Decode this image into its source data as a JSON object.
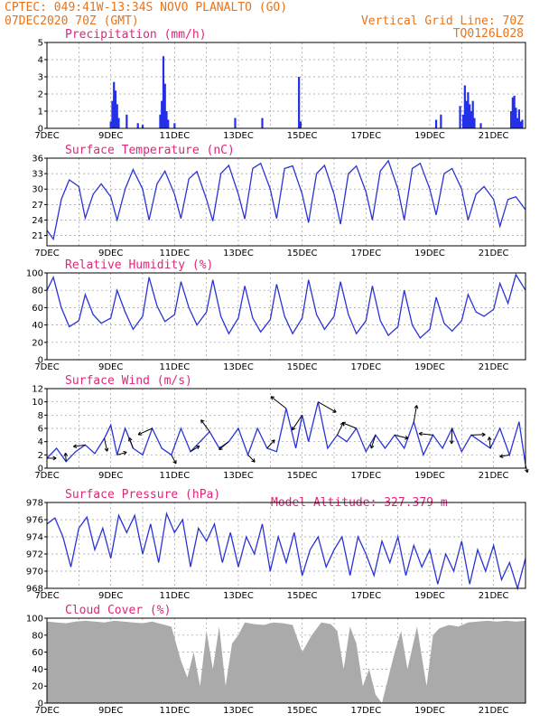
{
  "header": {
    "line1_left": "CPTEC:  049:41W-13:34S  NOVO PLANALTO (GO)",
    "line2_left": "07DEC2020 70Z (GMT)",
    "line2_right": "Vertical Grid Line: 70Z",
    "line3_right": "TQ0126L028",
    "model_altitude": "Model Altitude: 327.379 m"
  },
  "colors": {
    "header": "#e8731b",
    "title": "#e0257a",
    "series": "#2a33d6",
    "bars": "#2430e8",
    "cloud": "#aaaaaa"
  },
  "chart_data": [
    {
      "type": "bar",
      "title": "Precipitation (mm/h)",
      "xlim": [
        0,
        15
      ],
      "ylim": [
        0,
        5
      ],
      "yticks": [
        0,
        1,
        2,
        3,
        4,
        5
      ],
      "xticks": [
        {
          "x": 0,
          "label": "7DEC"
        },
        {
          "x": 2,
          "label": "9DEC"
        },
        {
          "x": 4,
          "label": "11DEC"
        },
        {
          "x": 6,
          "label": "13DEC"
        },
        {
          "x": 8,
          "label": "15DEC"
        },
        {
          "x": 10,
          "label": "17DEC"
        },
        {
          "x": 12,
          "label": "19DEC"
        },
        {
          "x": 14,
          "label": "21DEC"
        }
      ],
      "x": [
        2.0,
        2.05,
        2.1,
        2.15,
        2.2,
        2.25,
        2.5,
        2.85,
        3.0,
        3.55,
        3.6,
        3.65,
        3.7,
        3.75,
        3.8,
        4.0,
        5.9,
        6.75,
        7.9,
        7.95,
        12.2,
        12.35,
        12.95,
        13.05,
        13.1,
        13.15,
        13.2,
        13.25,
        13.3,
        13.35,
        13.4,
        13.6,
        14.55,
        14.6,
        14.65,
        14.7,
        14.75,
        14.8,
        14.85,
        14.9
      ],
      "values": [
        0.4,
        1.6,
        2.7,
        2.2,
        1.4,
        0.6,
        0.8,
        0.3,
        0.2,
        0.8,
        1.6,
        4.2,
        2.6,
        1.0,
        0.5,
        0.3,
        0.6,
        0.6,
        3.0,
        0.4,
        0.5,
        0.8,
        1.3,
        0.8,
        2.5,
        1.6,
        2.1,
        1.4,
        1.0,
        1.6,
        0.6,
        0.3,
        1.0,
        1.8,
        1.9,
        1.2,
        0.6,
        1.1,
        0.4,
        0.5
      ]
    },
    {
      "type": "line",
      "title": "Surface Temperature (nC)",
      "xlim": [
        0,
        15
      ],
      "ylim": [
        19,
        36
      ],
      "yticks": [
        21,
        24,
        27,
        30,
        33,
        36
      ],
      "xticks": [
        {
          "x": 0,
          "label": "7DEC"
        },
        {
          "x": 2,
          "label": "9DEC"
        },
        {
          "x": 4,
          "label": "11DEC"
        },
        {
          "x": 6,
          "label": "13DEC"
        },
        {
          "x": 8,
          "label": "15DEC"
        },
        {
          "x": 10,
          "label": "17DEC"
        },
        {
          "x": 12,
          "label": "19DEC"
        },
        {
          "x": 14,
          "label": "21DEC"
        }
      ],
      "x": [
        0,
        0.2,
        0.45,
        0.7,
        1.0,
        1.2,
        1.45,
        1.7,
        2.0,
        2.2,
        2.45,
        2.7,
        3.0,
        3.2,
        3.45,
        3.7,
        4.0,
        4.2,
        4.45,
        4.7,
        5.0,
        5.2,
        5.45,
        5.7,
        6.0,
        6.2,
        6.45,
        6.7,
        7.0,
        7.2,
        7.45,
        7.7,
        8.0,
        8.2,
        8.45,
        8.7,
        9.0,
        9.2,
        9.45,
        9.7,
        10.0,
        10.2,
        10.45,
        10.7,
        11.0,
        11.2,
        11.45,
        11.7,
        12.0,
        12.2,
        12.45,
        12.7,
        13.0,
        13.2,
        13.45,
        13.7,
        14.0,
        14.2,
        14.45,
        14.7,
        15.0
      ],
      "values": [
        22,
        20.3,
        28,
        31.8,
        30.5,
        24.4,
        29,
        31,
        28.5,
        24,
        30,
        33.8,
        30,
        24,
        31,
        33.5,
        29,
        24.3,
        32,
        33.4,
        28,
        23.8,
        33,
        34.6,
        29,
        24.2,
        34,
        35.0,
        30,
        24.3,
        34,
        34.5,
        29,
        23.5,
        33,
        34.6,
        29,
        23.2,
        33,
        34.5,
        29.5,
        24,
        33.5,
        35.5,
        30,
        24,
        34,
        35.0,
        30,
        25,
        33,
        34.0,
        30,
        24,
        29,
        30.5,
        28,
        22.8,
        28,
        28.5,
        26
      ]
    },
    {
      "type": "line",
      "title": "Relative Humidity (%)",
      "xlim": [
        0,
        15
      ],
      "ylim": [
        0,
        100
      ],
      "yticks": [
        0,
        20,
        40,
        60,
        80,
        100
      ],
      "xticks": [
        {
          "x": 0,
          "label": "7DEC"
        },
        {
          "x": 2,
          "label": "9DEC"
        },
        {
          "x": 4,
          "label": "11DEC"
        },
        {
          "x": 6,
          "label": "13DEC"
        },
        {
          "x": 8,
          "label": "15DEC"
        },
        {
          "x": 10,
          "label": "17DEC"
        },
        {
          "x": 12,
          "label": "19DEC"
        },
        {
          "x": 14,
          "label": "21DEC"
        }
      ],
      "x": [
        0,
        0.2,
        0.45,
        0.7,
        1.0,
        1.2,
        1.45,
        1.7,
        2.0,
        2.2,
        2.45,
        2.7,
        3.0,
        3.2,
        3.45,
        3.7,
        4.0,
        4.2,
        4.45,
        4.7,
        5.0,
        5.2,
        5.45,
        5.7,
        6.0,
        6.2,
        6.45,
        6.7,
        7.0,
        7.2,
        7.45,
        7.7,
        8.0,
        8.2,
        8.45,
        8.7,
        9.0,
        9.2,
        9.45,
        9.7,
        10.0,
        10.2,
        10.45,
        10.7,
        11.0,
        11.2,
        11.45,
        11.7,
        12.0,
        12.2,
        12.45,
        12.7,
        13.0,
        13.2,
        13.45,
        13.7,
        14.0,
        14.2,
        14.45,
        14.7,
        15.0
      ],
      "values": [
        80,
        95,
        60,
        38,
        45,
        75,
        52,
        42,
        48,
        80,
        55,
        35,
        50,
        95,
        62,
        44,
        52,
        90,
        60,
        40,
        55,
        92,
        50,
        30,
        48,
        85,
        48,
        32,
        46,
        87,
        50,
        30,
        48,
        92,
        52,
        35,
        50,
        90,
        52,
        30,
        45,
        85,
        45,
        28,
        38,
        80,
        40,
        25,
        35,
        72,
        42,
        33,
        45,
        75,
        55,
        50,
        58,
        88,
        65,
        98,
        80
      ]
    },
    {
      "type": "line",
      "title": "Surface Wind (m/s)",
      "xlim": [
        0,
        15
      ],
      "ylim": [
        0,
        12
      ],
      "yticks": [
        0,
        2,
        4,
        6,
        8,
        10,
        12
      ],
      "xticks": [
        {
          "x": 0,
          "label": "7DEC"
        },
        {
          "x": 2,
          "label": "9DEC"
        },
        {
          "x": 4,
          "label": "11DEC"
        },
        {
          "x": 6,
          "label": "13DEC"
        },
        {
          "x": 8,
          "label": "15DEC"
        },
        {
          "x": 10,
          "label": "17DEC"
        },
        {
          "x": 12,
          "label": "19DEC"
        },
        {
          "x": 14,
          "label": "21DEC"
        }
      ],
      "x": [
        0,
        0.3,
        0.6,
        0.9,
        1.2,
        1.5,
        1.8,
        2.0,
        2.2,
        2.45,
        2.7,
        3.0,
        3.3,
        3.6,
        3.9,
        4.2,
        4.5,
        4.8,
        5.1,
        5.4,
        5.7,
        6.0,
        6.3,
        6.6,
        6.9,
        7.2,
        7.5,
        7.8,
        8.0,
        8.2,
        8.5,
        8.8,
        9.1,
        9.4,
        9.7,
        10.0,
        10.3,
        10.6,
        10.9,
        11.2,
        11.5,
        11.8,
        12.1,
        12.4,
        12.7,
        13.0,
        13.3,
        13.6,
        13.9,
        14.2,
        14.5,
        14.8,
        15.0
      ],
      "values": [
        1.5,
        3.0,
        1.0,
        2.5,
        3.5,
        2.2,
        4.5,
        6.5,
        2.0,
        6.0,
        3.0,
        2.0,
        6.0,
        3.0,
        2.0,
        6.0,
        2.5,
        4.0,
        5.5,
        3.0,
        4.0,
        6.0,
        2.0,
        6.0,
        3.0,
        2.5,
        9.0,
        3.0,
        8.0,
        4.0,
        10.0,
        3.0,
        5.0,
        4.0,
        6.0,
        2.5,
        5.0,
        3.0,
        5.0,
        3.0,
        7.0,
        2.0,
        5.0,
        3.0,
        6.0,
        2.5,
        5.0,
        4.0,
        3.0,
        6.0,
        2.0,
        7.0,
        0.5
      ]
    },
    {
      "type": "line",
      "title": "Surface Pressure (hPa)",
      "xlim": [
        0,
        15
      ],
      "ylim": [
        968,
        978
      ],
      "yticks": [
        968,
        970,
        972,
        974,
        976,
        978
      ],
      "xticks": [
        {
          "x": 0,
          "label": "7DEC"
        },
        {
          "x": 2,
          "label": "9DEC"
        },
        {
          "x": 4,
          "label": "11DEC"
        },
        {
          "x": 6,
          "label": "13DEC"
        },
        {
          "x": 8,
          "label": "15DEC"
        },
        {
          "x": 10,
          "label": "17DEC"
        },
        {
          "x": 12,
          "label": "19DEC"
        },
        {
          "x": 14,
          "label": "21DEC"
        }
      ],
      "x": [
        0,
        0.25,
        0.5,
        0.75,
        1.0,
        1.25,
        1.5,
        1.75,
        2.0,
        2.25,
        2.5,
        2.75,
        3.0,
        3.25,
        3.5,
        3.75,
        4.0,
        4.25,
        4.5,
        4.75,
        5.0,
        5.25,
        5.5,
        5.75,
        6.0,
        6.25,
        6.5,
        6.75,
        7.0,
        7.25,
        7.5,
        7.75,
        8.0,
        8.25,
        8.5,
        8.75,
        9.0,
        9.25,
        9.5,
        9.75,
        10.0,
        10.25,
        10.5,
        10.75,
        11.0,
        11.25,
        11.5,
        11.75,
        12.0,
        12.25,
        12.5,
        12.75,
        13.0,
        13.25,
        13.5,
        13.75,
        14.0,
        14.25,
        14.5,
        14.75,
        15.0
      ],
      "values": [
        975.5,
        976.2,
        974,
        970.5,
        975,
        976.3,
        972.5,
        975,
        971.5,
        976.5,
        974.5,
        976.5,
        972,
        975.5,
        971,
        976.7,
        974.5,
        976,
        970.5,
        975,
        973.5,
        975.5,
        971,
        974.5,
        970.5,
        974,
        972,
        975.5,
        970,
        974,
        971,
        974.5,
        969.5,
        972.5,
        974,
        970.5,
        972.5,
        974,
        969.5,
        974,
        972,
        969.5,
        973.5,
        971,
        974,
        969.5,
        973,
        970.5,
        972.5,
        968.5,
        972,
        970,
        973.5,
        968.5,
        972.5,
        970,
        973,
        969,
        971,
        968,
        971.5
      ]
    },
    {
      "type": "area",
      "title": "Cloud Cover (%)",
      "xlim": [
        0,
        15
      ],
      "ylim": [
        0,
        100
      ],
      "yticks": [
        0,
        20,
        40,
        60,
        80,
        100
      ],
      "xticks": [
        {
          "x": 0,
          "label": "7DEC"
        },
        {
          "x": 2,
          "label": "9DEC"
        },
        {
          "x": 4,
          "label": "11DEC"
        },
        {
          "x": 6,
          "label": "13DEC"
        },
        {
          "x": 8,
          "label": "15DEC"
        },
        {
          "x": 10,
          "label": "17DEC"
        },
        {
          "x": 12,
          "label": "19DEC"
        },
        {
          "x": 14,
          "label": "21DEC"
        }
      ],
      "x": [
        0,
        0.3,
        0.6,
        0.9,
        1.2,
        1.5,
        1.8,
        2.1,
        2.4,
        2.7,
        3.0,
        3.3,
        3.6,
        3.9,
        4.2,
        4.4,
        4.6,
        4.8,
        5.0,
        5.2,
        5.4,
        5.6,
        5.8,
        6.0,
        6.2,
        6.5,
        6.8,
        7.1,
        7.4,
        7.7,
        8.0,
        8.3,
        8.6,
        8.9,
        9.1,
        9.3,
        9.5,
        9.7,
        9.9,
        10.1,
        10.3,
        10.5,
        10.7,
        10.9,
        11.1,
        11.3,
        11.6,
        11.9,
        12.1,
        12.3,
        12.6,
        12.9,
        13.2,
        13.5,
        13.8,
        14.1,
        14.4,
        14.7,
        15.0
      ],
      "values": [
        96,
        95,
        94,
        96,
        97,
        96,
        95,
        97,
        96,
        95,
        94,
        96,
        93,
        90,
        50,
        30,
        60,
        20,
        85,
        40,
        90,
        20,
        70,
        80,
        95,
        93,
        92,
        95,
        94,
        92,
        60,
        80,
        95,
        93,
        85,
        40,
        90,
        70,
        20,
        40,
        10,
        0,
        30,
        60,
        85,
        40,
        90,
        20,
        80,
        88,
        92,
        90,
        95,
        96,
        97,
        96,
        97,
        96,
        97
      ]
    }
  ]
}
